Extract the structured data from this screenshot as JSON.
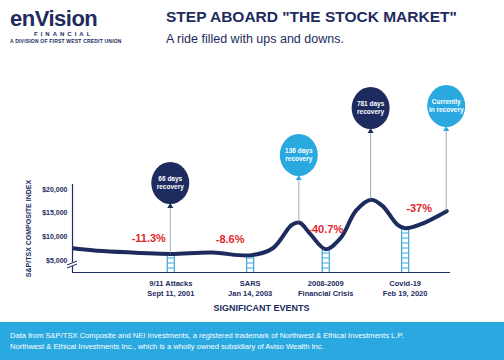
{
  "chart_data": {
    "type": "line",
    "logo": {
      "name": "enVision",
      "sub": "FINANCIAL",
      "division": "A DIVISION OF FIRST WEST CREDIT UNION"
    },
    "title": "STEP ABOARD \"THE STOCK MARKET\"",
    "subtitle": "A ride filled with ups and downs.",
    "y_label": "S&P/TSX COMPOSITE INDEX",
    "x_label": "SIGNIFICANT EVENTS",
    "x": [
      0,
      8,
      18,
      26,
      37,
      47,
      53,
      58,
      60,
      63,
      67,
      71,
      75,
      79,
      82,
      86,
      88,
      92,
      99
    ],
    "values": [
      7600,
      7000,
      6600,
      6400,
      6700,
      6100,
      7600,
      12500,
      13000,
      10500,
      7400,
      9800,
      15500,
      17800,
      16500,
      12500,
      11800,
      12600,
      15400
    ],
    "color": "#1d2b5e",
    "xlim": [
      0,
      100
    ],
    "ylim": [
      2500,
      21000
    ],
    "yticks": [
      {
        "value": 5000,
        "label": "$5,000"
      },
      {
        "value": 10000,
        "label": "$10,000"
      },
      {
        "value": 15000,
        "label": "$15,000"
      },
      {
        "value": 20000,
        "label": "$20,000"
      }
    ],
    "tick_labels": "y",
    "grid": false,
    "events": [
      {
        "x": 26,
        "name": "9/11 Attacks",
        "date": "Sept 11, 2001",
        "change": "-11.3%",
        "recovery_x": 26,
        "recovery": [
          "66 days",
          "recovery"
        ],
        "color": "#1d2b5e"
      },
      {
        "x": 47,
        "name": "SARS",
        "date": "Jan 14, 2003",
        "change": "-8.6%",
        "recovery_x": 60,
        "recovery": [
          "136 days",
          "recovery"
        ],
        "color": "#2aa9e0"
      },
      {
        "x": 67,
        "name": "2008-2009",
        "date": "Financial Crisis",
        "change": "-40.7%",
        "recovery_x": 79,
        "recovery": [
          "781 days",
          "recovery"
        ],
        "color": "#1d2b5e"
      },
      {
        "x": 88,
        "name": "Covid-19",
        "date": "Feb 19, 2020",
        "change": "-37%",
        "recovery_x": 99,
        "recovery": [
          "Currently",
          "in recovery"
        ],
        "color": "#2aa9e0"
      }
    ],
    "source": [
      "Data from S&P/TSX Composite and NEI Investments, a registered trademark of Northwest & Ethical Investments L.P.",
      "Northwest & Ethical Investments Inc., which is a wholly owned subsidiary of Aviso Wealth Inc."
    ]
  }
}
